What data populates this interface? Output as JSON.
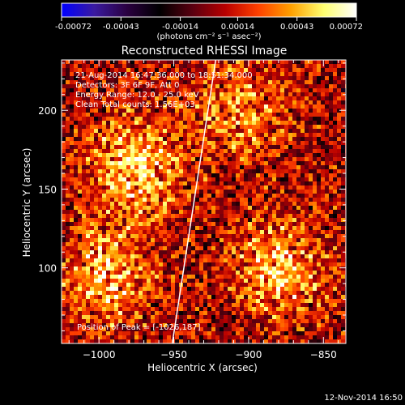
{
  "colorbar": {
    "ticks": [
      "-0.00072",
      "-0.00043",
      "-0.00014",
      "0.00014",
      "0.00043",
      "0.00072"
    ],
    "min": -0.00072,
    "max": 0.00072,
    "unit_label": "(photons cm⁻² s⁻¹ asec⁻²)",
    "colormap": [
      "#0000ff",
      "#3a1aa0",
      "#2a0040",
      "#000000",
      "#5a0010",
      "#b80000",
      "#ff4000",
      "#ffa000",
      "#ffff70",
      "#ffffff"
    ]
  },
  "chart_data": {
    "type": "heatmap",
    "title": "Reconstructed RHESSI Image",
    "xlabel": "Heliocentric X (arcsec)",
    "ylabel": "Heliocentric Y (arcsec)",
    "xlim": [
      -1025,
      -835
    ],
    "ylim": [
      52,
      232
    ],
    "x_ticks": [
      -1000,
      -950,
      -900,
      -850
    ],
    "y_ticks": [
      50,
      100,
      150,
      200
    ],
    "x_tick_labels": [
      "−1000",
      "−950",
      "−900",
      "−850"
    ],
    "y_tick_labels": [
      "50",
      "100",
      "150",
      "200"
    ],
    "grid": false,
    "limb_line": [
      [
        -951,
        52
      ],
      [
        -922,
        232
      ]
    ],
    "peak": [
      -1026,
      187
    ],
    "bright_regions": [
      {
        "x": -975,
        "y": 165,
        "level": 0.0006
      },
      {
        "x": -995,
        "y": 95,
        "level": 0.0005
      },
      {
        "x": -880,
        "y": 100,
        "level": 0.0005
      },
      {
        "x": -905,
        "y": 200,
        "level": 0.0004
      }
    ],
    "annotations": [
      "21-Aug-2014 16:47:36.000 to 18:51:34.000",
      "Detectors: 3F 6F 9F, Att 0",
      "Energy Range: 12.0 - 25.0 keV",
      "Clean    Total counts: 1.56E+03"
    ],
    "peak_label": "Position of Peak = [-1026,187]"
  },
  "footer": {
    "timestamp": "12-Nov-2014 16:50"
  }
}
